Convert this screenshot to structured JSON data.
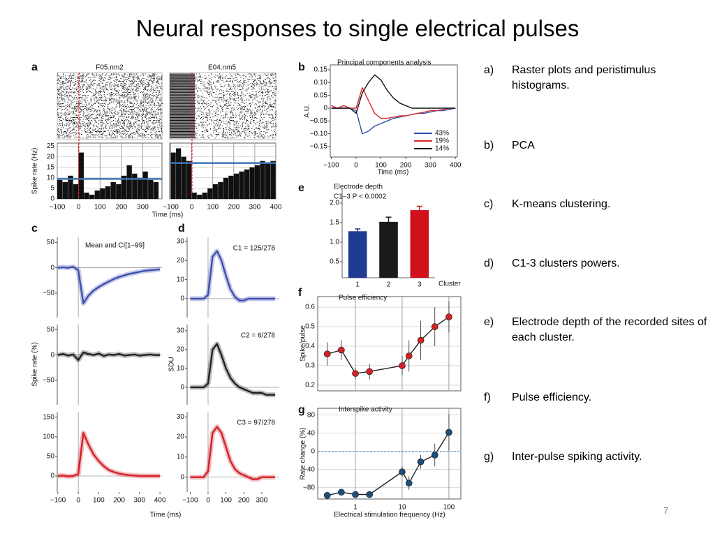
{
  "title": "Neural responses to single electrical pulses",
  "items": [
    {
      "marker": "a)",
      "text": "Raster plots and peristimulus histograms."
    },
    {
      "marker": "b)",
      "text": "PCA"
    },
    {
      "marker": "c)",
      "text": "K-means clustering."
    },
    {
      "marker": "d)",
      "text": "C1-3 clusters powers."
    },
    {
      "marker": "e)",
      "text": "Electrode depth of the recorded sites of each cluster."
    },
    {
      "marker": "f)",
      "text": "Pulse efficiency."
    },
    {
      "marker": "g)",
      "text": "Inter-pulse spiking activity."
    }
  ],
  "page_number": "7",
  "chart_data": [
    {
      "type": "histogram",
      "label": "a",
      "title": "F05.nm2",
      "y_label": "Spike rate (Hz)",
      "color": "#111111",
      "bins": [
        -100,
        -75,
        -50,
        -25,
        0,
        25,
        50,
        75,
        100,
        125,
        150,
        175,
        200,
        225,
        250,
        275,
        300,
        325,
        350,
        375
      ],
      "values": [
        9,
        8,
        11,
        7,
        22,
        3,
        2,
        4,
        5,
        6,
        8,
        7,
        11,
        16,
        12,
        10,
        13,
        9,
        8
      ],
      "mean_line": 9.5,
      "mean_color": "#3a78b5",
      "xlim": [
        -100,
        390
      ],
      "ylim": [
        0,
        26.5
      ],
      "yticks": [
        0,
        5,
        10,
        15,
        20,
        25
      ],
      "xticks": [
        {
          "value": -100,
          "label": "−100"
        },
        0,
        100,
        200,
        300
      ],
      "grid": true
    },
    {
      "type": "histogram",
      "title": "E04.nm5",
      "x_label": "Time (ms)",
      "color": "#111111",
      "bins": [
        -100,
        -75,
        -50,
        -25,
        0,
        25,
        50,
        75,
        100,
        125,
        150,
        175,
        200,
        225,
        250,
        275,
        300,
        325,
        350,
        375,
        400
      ],
      "values": [
        22,
        24,
        20,
        18,
        3,
        2,
        3,
        5,
        7,
        8,
        10,
        11,
        12,
        13,
        14,
        15,
        16,
        18,
        17,
        18
      ],
      "mean_line": 17,
      "mean_color": "#3a78b5",
      "xlim": [
        -105,
        400
      ],
      "ylim": [
        0,
        26.5
      ],
      "xticks": [
        {
          "value": -100,
          "label": "−100"
        },
        0,
        100,
        200,
        300,
        400
      ],
      "grid": true
    },
    {
      "type": "line",
      "label": "c",
      "title": "Mean and CI[1–99]",
      "x": [
        -100,
        -75,
        -50,
        -25,
        0,
        25,
        50,
        75,
        100,
        125,
        150,
        175,
        200,
        225,
        250,
        275,
        300,
        325,
        350,
        375,
        400
      ],
      "series": [
        {
          "color": "#3f4fb0",
          "values": [
            0,
            1,
            0,
            2,
            -5,
            -70,
            -55,
            -45,
            -38,
            -32,
            -27,
            -22,
            -18,
            -15,
            -12,
            -10,
            -8,
            -6,
            -5,
            -4,
            -3
          ]
        }
      ],
      "xlim": [
        -103,
        410
      ],
      "ylim": [
        -98,
        60
      ],
      "yticks": [
        50,
        0,
        {
          "value": -50,
          "label": "−50"
        }
      ]
    },
    {
      "type": "line",
      "y_label": "Spike rate (%)",
      "x": [
        -100,
        -75,
        -50,
        -25,
        0,
        25,
        50,
        75,
        100,
        125,
        150,
        175,
        200,
        225,
        250,
        275,
        300,
        325,
        350,
        375,
        400
      ],
      "series": [
        {
          "color": "#222222",
          "values": [
            0,
            2,
            -1,
            1,
            -10,
            5,
            2,
            0,
            3,
            -2,
            1,
            0,
            2,
            -1,
            0,
            1,
            -1,
            0,
            1,
            0,
            0
          ]
        }
      ],
      "xlim": [
        -103,
        410
      ],
      "ylim": [
        -98,
        60
      ],
      "yticks": [
        50,
        0,
        {
          "value": -50,
          "label": "−50"
        }
      ]
    },
    {
      "type": "line",
      "x_label": "Time (ms)",
      "x": [
        -100,
        -75,
        -50,
        -25,
        0,
        25,
        50,
        75,
        100,
        125,
        150,
        175,
        200,
        225,
        250,
        275,
        300,
        325,
        350,
        375,
        400
      ],
      "series": [
        {
          "color": "#d42027",
          "values": [
            0,
            1,
            -1,
            0,
            5,
            110,
            80,
            55,
            38,
            25,
            15,
            10,
            6,
            4,
            2,
            1,
            0,
            0,
            0,
            0,
            0
          ]
        }
      ],
      "xlim": [
        -103,
        410
      ],
      "ylim": [
        -41,
        164
      ],
      "yticks": [
        150,
        100,
        50,
        0
      ],
      "xticks": [
        {
          "value": -100,
          "label": "−100"
        },
        0,
        100,
        200,
        300,
        400
      ]
    },
    {
      "type": "line",
      "label": "d",
      "title": "C1 = 125/278",
      "x": [
        -100,
        -75,
        -50,
        -25,
        0,
        25,
        50,
        75,
        100,
        125,
        150,
        175,
        200,
        225,
        250,
        275,
        300,
        325,
        350,
        375
      ],
      "series": [
        {
          "color": "#3f4fb0",
          "values": [
            0,
            0,
            0,
            0,
            2,
            22,
            25,
            20,
            12,
            5,
            1,
            -1,
            -1,
            0,
            0,
            0,
            0,
            0,
            0,
            0
          ]
        }
      ],
      "xlim": [
        -117,
        398
      ],
      "ylim": [
        -9.9,
        32.2
      ],
      "yticks": [
        30,
        20,
        10,
        0
      ]
    },
    {
      "type": "line",
      "title": "C2 = 6/278",
      "y_label": "SDU",
      "x": [
        -100,
        -75,
        -50,
        -25,
        0,
        25,
        50,
        75,
        100,
        125,
        150,
        175,
        200,
        225,
        250,
        275,
        300,
        325,
        350,
        375
      ],
      "series": [
        {
          "color": "#222222",
          "values": [
            0,
            0,
            0,
            0,
            2,
            20,
            23,
            17,
            10,
            5,
            2,
            0,
            -1,
            -2,
            -3,
            -3,
            -3,
            -4,
            -4,
            -4
          ]
        }
      ],
      "xlim": [
        -117,
        398
      ],
      "ylim": [
        -9.3,
        33.3
      ],
      "yticks": [
        30,
        20,
        10,
        0
      ]
    },
    {
      "type": "line",
      "title": "C3 = 97/278",
      "x": [
        -100,
        -75,
        -50,
        -25,
        0,
        25,
        50,
        75,
        100,
        125,
        150,
        175,
        200,
        225,
        250,
        275,
        300,
        325,
        350,
        375
      ],
      "series": [
        {
          "color": "#d42027",
          "values": [
            0,
            0,
            0,
            0,
            3,
            22,
            25,
            22,
            15,
            8,
            4,
            2,
            1,
            0,
            -1,
            -1,
            0,
            0,
            0,
            0
          ]
        }
      ],
      "xlim": [
        -117,
        398
      ],
      "ylim": [
        -7.4,
        32.5
      ],
      "yticks": [
        30,
        20,
        10,
        0
      ],
      "xticks": [
        {
          "value": -100,
          "label": "−100"
        },
        0,
        100,
        200,
        300
      ]
    },
    {
      "type": "line",
      "label": "b",
      "title": "Principal components analysis",
      "y_label": "A.U.",
      "x_label": "Time (ms)",
      "legend": "lower right",
      "x": [
        -100,
        -75,
        -50,
        -25,
        0,
        25,
        50,
        75,
        100,
        125,
        150,
        175,
        200,
        225,
        250,
        275,
        300,
        325,
        350,
        375,
        400
      ],
      "series": [
        {
          "name": "43%",
          "color": "#2b4ea8",
          "values": [
            0,
            0,
            0,
            0,
            -0.01,
            -0.1,
            -0.09,
            -0.07,
            -0.06,
            -0.05,
            -0.04,
            -0.035,
            -0.03,
            -0.025,
            -0.02,
            -0.02,
            -0.015,
            -0.01,
            -0.01,
            -0.005,
            0
          ]
        },
        {
          "name": "19%",
          "color": "#e0262b",
          "values": [
            0.01,
            0,
            0.01,
            0,
            0,
            0.08,
            0.03,
            -0.02,
            -0.04,
            -0.04,
            -0.035,
            -0.03,
            -0.03,
            -0.025,
            -0.02,
            -0.015,
            -0.01,
            -0.01,
            -0.005,
            0,
            0
          ]
        },
        {
          "name": "14%",
          "color": "#111111",
          "values": [
            0,
            0,
            0,
            0,
            -0.02,
            0.06,
            0.1,
            0.13,
            0.11,
            0.07,
            0.04,
            0.02,
            0.01,
            0,
            0,
            0,
            0,
            0,
            0,
            0,
            0
          ]
        }
      ],
      "xlim": [
        -104,
        408
      ],
      "ylim": [
        -0.191,
        0.169
      ],
      "yticks": [
        0.15,
        {
          "value": 0.1,
          "label": "0.10"
        },
        0.05,
        0,
        {
          "value": -0.05,
          "label": "−0.05"
        },
        {
          "value": -0.1,
          "label": "−0.10"
        },
        {
          "value": -0.15,
          "label": "−0.15"
        }
      ],
      "xticks": [
        {
          "value": -100,
          "label": "−100"
        },
        0,
        100,
        200,
        300,
        400
      ]
    },
    {
      "type": "bar",
      "label": "e",
      "title": "Electrode depth",
      "subtitle": "C1–3 P < 0.0002",
      "x_label": "Cluster",
      "categories": [
        "1",
        "2",
        "3"
      ],
      "values": [
        1.28,
        1.52,
        1.82
      ],
      "errors": [
        0.06,
        0.12,
        0.1
      ],
      "colors": [
        "#1f3a93",
        "#1a1a1a",
        "#d0101a"
      ],
      "ylim": [
        0.089,
        2.375
      ],
      "yticks": [
        0.5,
        {
          "value": 1,
          "label": "1.0"
        },
        1.5,
        {
          "value": 2,
          "label": "2.0"
        }
      ]
    },
    {
      "type": "line",
      "label": "f",
      "title": "Pulse efficiency",
      "y_label": "Spike/pulse",
      "xscale": "log",
      "grid": true,
      "x": [
        0.25,
        0.5,
        1,
        2,
        10,
        14,
        25,
        50,
        100
      ],
      "series": [
        {
          "color": "#d42027",
          "values": [
            0.36,
            0.38,
            0.26,
            0.27,
            0.3,
            0.35,
            0.43,
            0.5,
            0.55
          ],
          "errors": [
            0.06,
            0.05,
            0.03,
            0.04,
            0.05,
            0.08,
            0.1,
            0.1,
            0.08
          ]
        }
      ],
      "xlim": [
        0.156,
        180
      ],
      "ylim": [
        0.171,
        0.654
      ],
      "yticks": [
        0.6,
        0.5,
        0.4,
        0.3,
        0.2
      ]
    },
    {
      "type": "line",
      "label": "g",
      "title": "Interspike activity",
      "y_label": "Rate change (%)",
      "x_label": "Electrical stimulation frequency (Hz)",
      "xscale": "log",
      "grid": true,
      "x": [
        0.25,
        0.5,
        1,
        2,
        10,
        14,
        25,
        50,
        100
      ],
      "series": [
        {
          "color": "#1f4e79",
          "values": [
            -97,
            -90,
            -95,
            -95,
            -45,
            -70,
            -23,
            -8,
            42
          ],
          "errors": [
            6,
            6,
            5,
            5,
            12,
            15,
            15,
            25,
            40
          ]
        }
      ],
      "xlim": [
        0.156,
        180
      ],
      "ylim": [
        -105,
        95
      ],
      "yticks": [
        80,
        40,
        0,
        {
          "value": -40,
          "label": "−40"
        },
        {
          "value": -80,
          "label": "−80"
        }
      ],
      "xticks": [
        1,
        10,
        100
      ]
    }
  ]
}
